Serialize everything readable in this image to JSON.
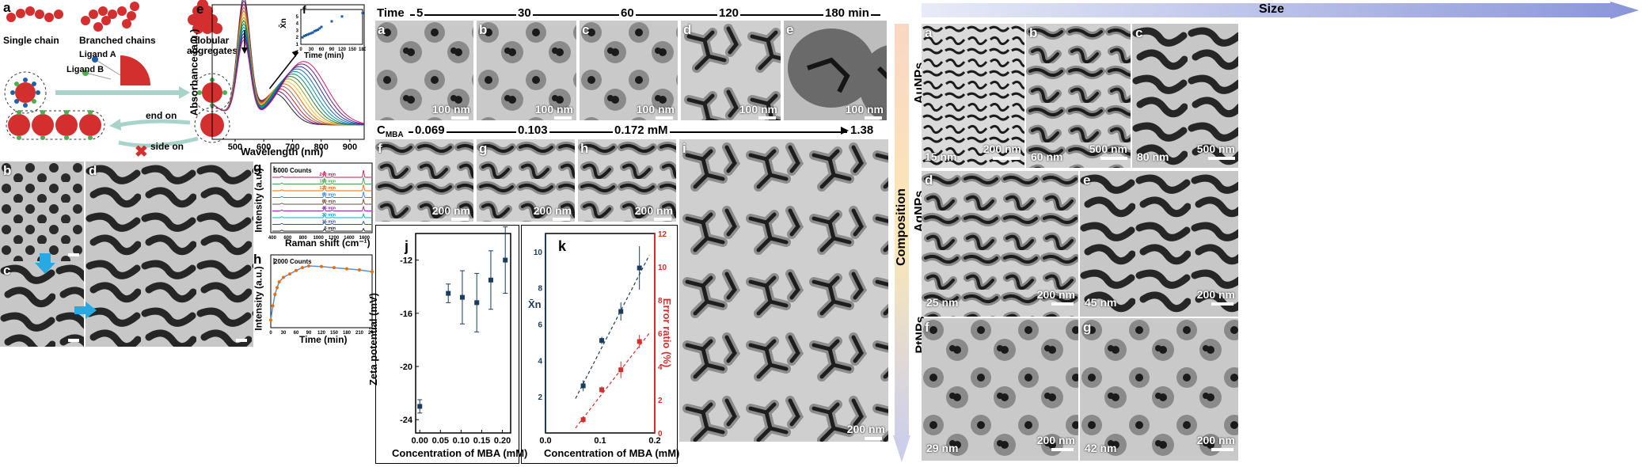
{
  "panel_left": {
    "a_label": "a",
    "single_chain": "Single chain",
    "branched_chains": "Branched chains",
    "globular_aggregates_1": "Globular",
    "globular_aggregates_2": "aggregates",
    "ligand_a": "Ligand A",
    "ligand_b": "Ligand B",
    "end_on": "end on",
    "side_on": "side on",
    "b_label": "b",
    "c_label": "c",
    "d_label": "d"
  },
  "panel_e": {
    "label": "e",
    "ylabel": "Absorbance (a.u.)",
    "xlabel": "Wavelength (nm)",
    "xticks": [
      "500",
      "600",
      "700",
      "800",
      "900"
    ]
  },
  "panel_f": {
    "label": "f",
    "xlabel": "Time (min)",
    "ylabel": "X̄n",
    "xticks": [
      "0",
      "30",
      "60",
      "90",
      "120",
      "150",
      "180"
    ],
    "yticks": [
      "1",
      "2",
      "3",
      "4",
      "5"
    ]
  },
  "panel_g": {
    "label": "g",
    "scale": "5000 Counts",
    "ylabel": "Intensity (a.u.)",
    "xlabel": "Raman shift (cm⁻¹)",
    "xticks": [
      "400",
      "600",
      "800",
      "1000",
      "1200",
      "1400",
      "1600"
    ],
    "traces": [
      "240 min",
      "180 min",
      "120 min",
      "90 min",
      "60 min",
      "45 min",
      "30 min",
      "15 min",
      "5 min"
    ],
    "colors": [
      "#c2185b",
      "#43a047",
      "#ef6c00",
      "#1e88e5",
      "#6d4c41",
      "#8e24aa",
      "#00acc1",
      "#3949ab",
      "#212121"
    ]
  },
  "panel_h": {
    "label": "h",
    "scale": "2000 Counts",
    "ylabel": "Intensity (a.u.)",
    "xlabel": "Time (min)",
    "xticks": [
      "0",
      "30",
      "60",
      "90",
      "120",
      "150",
      "180",
      "210",
      "240"
    ]
  },
  "time_row": {
    "title": "Time",
    "values": [
      "5",
      "30",
      "60",
      "120",
      "180 min"
    ],
    "panels": [
      "a",
      "b",
      "c",
      "d",
      "e"
    ],
    "scalebar": "100 nm"
  },
  "cmba_row": {
    "title_main": "C",
    "title_sub": "MBA",
    "values": [
      "0.069",
      "0.103",
      "0.172 mM",
      "1.38 mM"
    ],
    "panels": [
      "f",
      "g",
      "h",
      "i"
    ],
    "scalebar": "200 nm"
  },
  "panel_j": {
    "label": "j",
    "ylabel": "Zeta potential (mV)",
    "xlabel": "Concentration of MBA (mM)",
    "xticks": [
      "0.00",
      "0.05",
      "0.10",
      "0.15",
      "0.20"
    ],
    "yticks": [
      "-12",
      "-16",
      "-20",
      "-24"
    ]
  },
  "panel_k": {
    "label": "k",
    "ylabel_left": "X̄n",
    "ylabel_right": "Error ratio (%)",
    "xlabel": "Concentration of MBA (mM)",
    "xticks": [
      "0.0",
      "0.1",
      "0.2"
    ],
    "yticks_left": [
      "2",
      "4",
      "6",
      "8",
      "10"
    ],
    "yticks_right": [
      "0",
      "2",
      "4",
      "6",
      "8",
      "10",
      "12"
    ]
  },
  "right_grid": {
    "size_label": "Size",
    "composition_label": "Composition",
    "row_labels": [
      "AuNPs",
      "AgNPs",
      "PtNPs"
    ],
    "cells": [
      {
        "panel": "a",
        "size": "15 nm",
        "scalebar": "200 nm"
      },
      {
        "panel": "b",
        "size": "60 nm",
        "scalebar": "500 nm"
      },
      {
        "panel": "c",
        "size": "80 nm",
        "scalebar": "500 nm"
      },
      {
        "panel": "d",
        "size": "25 nm",
        "scalebar": "200 nm"
      },
      {
        "panel": "e",
        "size": "45 nm",
        "scalebar": "200 nm"
      },
      {
        "panel": "f",
        "size": "29 nm",
        "scalebar": "200 nm"
      },
      {
        "panel": "g",
        "size": "42 nm",
        "scalebar": "200 nm"
      }
    ]
  },
  "chart_data": [
    {
      "type": "line",
      "panel": "e",
      "xlabel": "Wavelength (nm)",
      "ylabel": "Absorbance (a.u.)",
      "xlim": [
        420,
        950
      ],
      "series_count": 14,
      "peak1_nm": 530,
      "peak2_nm_range": [
        640,
        740
      ]
    },
    {
      "type": "scatter",
      "panel": "f",
      "xlabel": "Time (min)",
      "ylabel": "X̄n",
      "x": [
        5,
        10,
        15,
        20,
        25,
        30,
        35,
        40,
        45,
        50,
        55,
        60,
        90,
        120,
        180
      ],
      "y": [
        2.0,
        2.2,
        2.3,
        2.4,
        2.5,
        2.6,
        2.7,
        2.9,
        3.0,
        3.1,
        3.3,
        3.5,
        4.3,
        5.0,
        5.5
      ],
      "xlim": [
        0,
        180
      ],
      "ylim": [
        1,
        6
      ]
    },
    {
      "type": "line",
      "panel": "h",
      "xlabel": "Time (min)",
      "ylabel": "Intensity (a.u.)",
      "x": [
        0,
        5,
        10,
        15,
        20,
        30,
        45,
        60,
        75,
        90,
        120,
        150,
        180,
        210,
        240
      ],
      "y": [
        0.05,
        0.3,
        0.5,
        0.62,
        0.72,
        0.8,
        0.86,
        0.92,
        0.97,
        1.0,
        0.99,
        0.97,
        0.95,
        0.93,
        0.9
      ],
      "xlim": [
        0,
        240
      ]
    },
    {
      "type": "scatter",
      "panel": "j",
      "xlabel": "Concentration of MBA (mM)",
      "ylabel": "Zeta potential (mV)",
      "x": [
        0.0,
        0.069,
        0.103,
        0.138,
        0.172,
        0.207
      ],
      "y": [
        -23,
        -14.5,
        -14.8,
        -15.2,
        -13.5,
        -12
      ],
      "err": [
        0.5,
        0.7,
        2.0,
        2.2,
        2.2,
        2.5
      ],
      "xlim": [
        -0.01,
        0.22
      ],
      "ylim": [
        -25,
        -10
      ]
    },
    {
      "type": "scatter",
      "panel": "k",
      "xlabel": "Concentration of MBA (mM)",
      "series": [
        {
          "name": "X̄n",
          "x": [
            0.069,
            0.103,
            0.138,
            0.172
          ],
          "y": [
            2.6,
            5.1,
            6.7,
            9.1
          ],
          "err": [
            0.3,
            0.2,
            0.5,
            1.2
          ]
        },
        {
          "name": "Error ratio (%)",
          "x": [
            0.069,
            0.103,
            0.138,
            0.172
          ],
          "y": [
            0.8,
            2.6,
            3.8,
            5.5
          ],
          "err": [
            0.2,
            0.2,
            0.5,
            0.4
          ]
        }
      ],
      "xlim": [
        0.0,
        0.2
      ],
      "ylim_left": [
        0,
        11
      ],
      "ylim_right": [
        0,
        12
      ]
    }
  ]
}
